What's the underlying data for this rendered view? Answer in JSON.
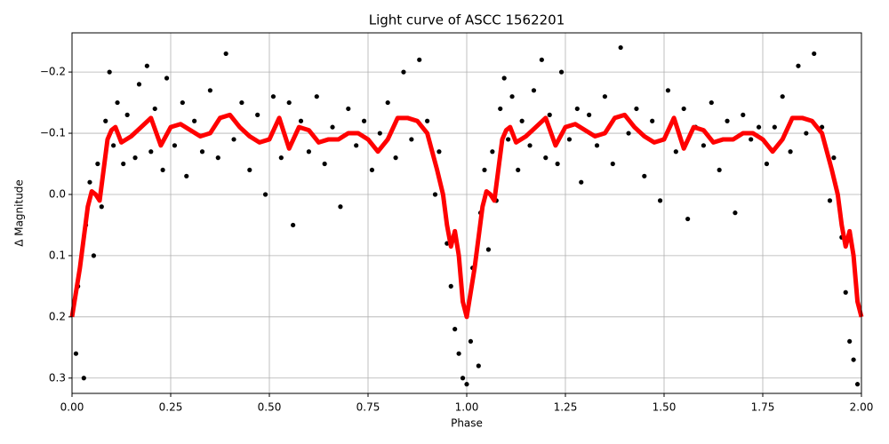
{
  "chart_data": {
    "type": "scatter",
    "title": "Light curve of ASCC 1562201",
    "x_label": "Phase",
    "y_label": "Δ Magnitude",
    "xlim": [
      0,
      2
    ],
    "ylim": [
      -0.264,
      0.325
    ],
    "y_inverted": true,
    "grid": true,
    "xticks": [
      {
        "value": 0,
        "label": "0.00"
      },
      {
        "value": 0.25,
        "label": "0.25"
      },
      {
        "value": 0.5,
        "label": "0.50"
      },
      {
        "value": 0.75,
        "label": "0.75"
      },
      {
        "value": 1,
        "label": "1.00"
      },
      {
        "value": 1.25,
        "label": "1.25"
      },
      {
        "value": 1.5,
        "label": "1.50"
      },
      {
        "value": 1.75,
        "label": "1.75"
      },
      {
        "value": 2,
        "label": "2.00"
      }
    ],
    "yticks": [
      {
        "value": -0.2,
        "label": "−0.2"
      },
      {
        "value": -0.1,
        "label": "−0.1"
      },
      {
        "value": 0,
        "label": "0.0"
      },
      0.1,
      0.2,
      0.3
    ],
    "series": [
      {
        "type": "scatter",
        "color": "#000000",
        "x": [
          0.01,
          0.015,
          0.03,
          0.035,
          0.045,
          0.055,
          0.065,
          0.075,
          0.085,
          0.095,
          0.105,
          0.115,
          0.13,
          0.14,
          0.16,
          0.17,
          0.19,
          0.2,
          0.21,
          0.23,
          0.24,
          0.26,
          0.28,
          0.29,
          0.31,
          0.33,
          0.35,
          0.37,
          0.39,
          0.41,
          0.43,
          0.45,
          0.47,
          0.49,
          0.51,
          0.53,
          0.55,
          0.56,
          0.58,
          0.6,
          0.62,
          0.64,
          0.66,
          0.68,
          0.7,
          0.72,
          0.74,
          0.76,
          0.78,
          0.8,
          0.82,
          0.84,
          0.86,
          0.88,
          0.9,
          0.92,
          0.93,
          0.95,
          0.96,
          0.97,
          0.98,
          0.99,
          1.0,
          1.01,
          1.015,
          1.03,
          1.035,
          1.045,
          1.055,
          1.065,
          1.075,
          1.085,
          1.095,
          1.105,
          1.115,
          1.13,
          1.14,
          1.16,
          1.17,
          1.19,
          1.2,
          1.21,
          1.23,
          1.24,
          1.26,
          1.28,
          1.29,
          1.31,
          1.33,
          1.35,
          1.37,
          1.39,
          1.41,
          1.43,
          1.45,
          1.47,
          1.49,
          1.51,
          1.53,
          1.55,
          1.56,
          1.58,
          1.6,
          1.62,
          1.64,
          1.66,
          1.68,
          1.7,
          1.72,
          1.74,
          1.76,
          1.78,
          1.8,
          1.82,
          1.84,
          1.86,
          1.88,
          1.9,
          1.92,
          1.93,
          1.95,
          1.96,
          1.97,
          1.98,
          1.99
        ],
        "values": [
          0.26,
          0.15,
          0.3,
          0.05,
          -0.02,
          0.1,
          -0.05,
          0.02,
          -0.12,
          -0.2,
          -0.08,
          -0.15,
          -0.05,
          -0.13,
          -0.06,
          -0.18,
          -0.21,
          -0.07,
          -0.14,
          -0.04,
          -0.19,
          -0.08,
          -0.15,
          -0.03,
          -0.12,
          -0.07,
          -0.17,
          -0.06,
          -0.23,
          -0.09,
          -0.15,
          -0.04,
          -0.13,
          0.0,
          -0.16,
          -0.06,
          -0.15,
          0.05,
          -0.12,
          -0.07,
          -0.16,
          -0.05,
          -0.11,
          0.02,
          -0.14,
          -0.08,
          -0.12,
          -0.04,
          -0.1,
          -0.15,
          -0.06,
          -0.2,
          -0.09,
          -0.22,
          -0.12,
          0.0,
          -0.07,
          0.08,
          0.15,
          0.22,
          0.26,
          0.3,
          0.31,
          0.24,
          0.12,
          0.28,
          0.03,
          -0.04,
          0.09,
          -0.07,
          0.01,
          -0.14,
          -0.19,
          -0.09,
          -0.16,
          -0.04,
          -0.12,
          -0.08,
          -0.17,
          -0.22,
          -0.06,
          -0.13,
          -0.05,
          -0.2,
          -0.09,
          -0.14,
          -0.02,
          -0.13,
          -0.08,
          -0.16,
          -0.05,
          -0.24,
          -0.1,
          -0.14,
          -0.03,
          -0.12,
          0.01,
          -0.17,
          -0.07,
          -0.14,
          0.04,
          -0.11,
          -0.08,
          -0.15,
          -0.04,
          -0.12,
          0.03,
          -0.13,
          -0.09,
          -0.11,
          -0.05,
          -0.11,
          -0.16,
          -0.07,
          -0.21,
          -0.1,
          -0.23,
          -0.11,
          0.01,
          -0.06,
          0.07,
          0.16,
          0.24,
          0.27,
          0.31
        ]
      },
      {
        "type": "line",
        "color": "#ff0000",
        "x": [
          0,
          0.02,
          0.04,
          0.05,
          0.06,
          0.07,
          0.08,
          0.09,
          0.1,
          0.11,
          0.125,
          0.15,
          0.175,
          0.2,
          0.225,
          0.25,
          0.275,
          0.3,
          0.325,
          0.35,
          0.375,
          0.4,
          0.425,
          0.45,
          0.475,
          0.5,
          0.525,
          0.55,
          0.575,
          0.6,
          0.625,
          0.65,
          0.675,
          0.7,
          0.725,
          0.75,
          0.775,
          0.8,
          0.825,
          0.85,
          0.875,
          0.9,
          0.925,
          0.94,
          0.95,
          0.96,
          0.97,
          0.98,
          0.99,
          1.0,
          1.02,
          1.04,
          1.05,
          1.06,
          1.07,
          1.08,
          1.09,
          1.1,
          1.11,
          1.125,
          1.15,
          1.175,
          1.2,
          1.225,
          1.25,
          1.275,
          1.3,
          1.325,
          1.35,
          1.375,
          1.4,
          1.425,
          1.45,
          1.475,
          1.5,
          1.525,
          1.55,
          1.575,
          1.6,
          1.625,
          1.65,
          1.675,
          1.7,
          1.725,
          1.75,
          1.775,
          1.8,
          1.825,
          1.85,
          1.875,
          1.9,
          1.925,
          1.94,
          1.95,
          1.96,
          1.97,
          1.98,
          1.99,
          2.0
        ],
        "values": [
          0.2,
          0.12,
          0.02,
          -0.005,
          0.0,
          0.01,
          -0.04,
          -0.09,
          -0.105,
          -0.11,
          -0.085,
          -0.095,
          -0.11,
          -0.125,
          -0.08,
          -0.11,
          -0.115,
          -0.105,
          -0.095,
          -0.1,
          -0.125,
          -0.13,
          -0.11,
          -0.095,
          -0.085,
          -0.09,
          -0.125,
          -0.075,
          -0.11,
          -0.105,
          -0.085,
          -0.09,
          -0.09,
          -0.1,
          -0.1,
          -0.09,
          -0.07,
          -0.09,
          -0.125,
          -0.125,
          -0.12,
          -0.1,
          -0.04,
          0.0,
          0.05,
          0.085,
          0.06,
          0.1,
          0.175,
          0.2,
          0.12,
          0.02,
          -0.005,
          0.0,
          0.01,
          -0.04,
          -0.09,
          -0.105,
          -0.11,
          -0.085,
          -0.095,
          -0.11,
          -0.125,
          -0.08,
          -0.11,
          -0.115,
          -0.105,
          -0.095,
          -0.1,
          -0.125,
          -0.13,
          -0.11,
          -0.095,
          -0.085,
          -0.09,
          -0.125,
          -0.075,
          -0.11,
          -0.105,
          -0.085,
          -0.09,
          -0.09,
          -0.1,
          -0.1,
          -0.09,
          -0.07,
          -0.09,
          -0.125,
          -0.125,
          -0.12,
          -0.1,
          -0.04,
          0.0,
          0.05,
          0.085,
          0.06,
          0.1,
          0.175,
          0.2
        ]
      }
    ]
  }
}
